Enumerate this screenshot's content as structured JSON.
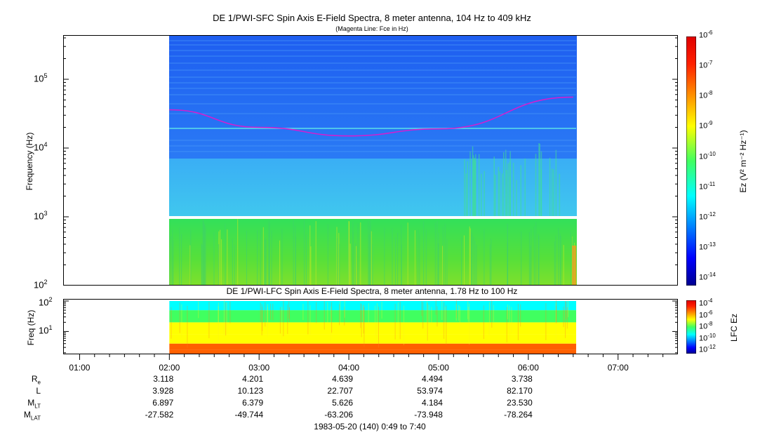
{
  "sfc_panel": {
    "title": "DE 1/PWI-SFC  Spin Axis E-Field Spectra, 8 meter antenna, 104 Hz to 409 kHz",
    "subtitle": "(Magenta Line: Fce in Hz)",
    "ylabel": "Frequency (Hz)",
    "ytick_labels": [
      {
        "base": "10",
        "exp": "5"
      },
      {
        "base": "10",
        "exp": "4"
      },
      {
        "base": "10",
        "exp": "3"
      },
      {
        "base": "10",
        "exp": "2"
      }
    ],
    "colorbar_label": "Ez (V² m⁻² Hz⁻¹)",
    "colorbar_ticks": [
      {
        "base": "10",
        "exp": "-6"
      },
      {
        "base": "10",
        "exp": "-7"
      },
      {
        "base": "10",
        "exp": "-8"
      },
      {
        "base": "10",
        "exp": "-9"
      },
      {
        "base": "10",
        "exp": "-10"
      },
      {
        "base": "10",
        "exp": "-11"
      },
      {
        "base": "10",
        "exp": "-12"
      },
      {
        "base": "10",
        "exp": "-13"
      },
      {
        "base": "10",
        "exp": "-14"
      }
    ]
  },
  "lfc_panel": {
    "title": "DE 1/PWI-LFC  Spin Axis E-Field Spectra, 8 meter antenna, 1.78 Hz to 100 Hz",
    "ylabel": "Freq (Hz)",
    "ytick_labels": [
      {
        "base": "10",
        "exp": "2"
      },
      {
        "base": "10",
        "exp": "1"
      }
    ],
    "colorbar_label": "LFC Ez",
    "colorbar_ticks": [
      {
        "base": "10",
        "exp": "-4"
      },
      {
        "base": "10",
        "exp": "-6"
      },
      {
        "base": "10",
        "exp": "-8"
      },
      {
        "base": "10",
        "exp": "-10"
      },
      {
        "base": "10",
        "exp": "-12"
      }
    ]
  },
  "time_axis": {
    "labels": [
      "01:00",
      "02:00",
      "03:00",
      "04:00",
      "05:00",
      "06:00",
      "07:00"
    ]
  },
  "orbit_table": {
    "rows": [
      {
        "label": "R",
        "sub": "e",
        "values": [
          "3.118",
          "4.201",
          "4.639",
          "4.494",
          "3.738"
        ]
      },
      {
        "label": "L",
        "sub": "",
        "values": [
          "3.928",
          "10.123",
          "22.707",
          "53.974",
          "82.170"
        ]
      },
      {
        "label": "M",
        "sub": "LT",
        "values": [
          "6.897",
          "6.379",
          "5.626",
          "4.184",
          "23.530"
        ]
      },
      {
        "label": "M",
        "sub": "LAT",
        "values": [
          "-27.582",
          "-49.744",
          "-63.206",
          "-73.948",
          "-78.264"
        ]
      }
    ]
  },
  "footer": "1983-05-20 (140) 0:49 to 7:40",
  "chart_data": [
    {
      "type": "heatmap",
      "title": "DE 1/PWI-SFC  Spin Axis E-Field Spectra, 8 meter antenna, 104 Hz to 409 kHz",
      "subtitle": "(Magenta Line: Fce in Hz)",
      "ylabel": "Frequency (Hz)",
      "yscale": "log",
      "ylim": [
        100,
        409000
      ],
      "xlim": [
        "00:49",
        "07:40"
      ],
      "data_xrange": [
        "02:00",
        "06:32"
      ],
      "colorbar": {
        "label": "Ez (V^2 m^-2 Hz^-1)",
        "scale": "log",
        "range": [
          1e-14,
          1e-06
        ]
      },
      "bands_log10": [
        {
          "fmin": 2.0,
          "fmax": 3.0,
          "level": -10.8
        },
        {
          "fmin": 3.0,
          "fmax": 3.83,
          "level": -12.3
        },
        {
          "fmin": 3.83,
          "fmax": 5.61,
          "level": -13.2
        }
      ],
      "fce_line": {
        "color": "#d020d0",
        "points": [
          {
            "t": "02:00",
            "f": 36000
          },
          {
            "t": "03:00",
            "f": 20000
          },
          {
            "t": "04:00",
            "f": 15000
          },
          {
            "t": "05:00",
            "f": 19000
          },
          {
            "t": "06:30",
            "f": 55000
          }
        ]
      },
      "grid": false
    },
    {
      "type": "heatmap",
      "title": "DE 1/PWI-LFC  Spin Axis E-Field Spectra, 8 meter antenna, 1.78 Hz to 100 Hz",
      "ylabel": "Freq (Hz)",
      "yscale": "log",
      "ylim": [
        1.78,
        100
      ],
      "data_xrange": [
        "02:00",
        "06:32"
      ],
      "colorbar": {
        "label": "LFC Ez",
        "scale": "log",
        "range": [
          1e-12,
          0.0001
        ]
      },
      "bands_log10": [
        {
          "fmin": 1.78,
          "fmax": 2.5,
          "level": -5.0
        },
        {
          "fmin": 2.5,
          "fmax": 4,
          "level": -5.8
        },
        {
          "fmin": 4,
          "fmax": 8,
          "level": -6.8
        },
        {
          "fmin": 8,
          "fmax": 20,
          "level": -7.8
        },
        {
          "fmin": 20,
          "fmax": 50,
          "level": -9.5
        },
        {
          "fmin": 50,
          "fmax": 100,
          "level": -11.0
        }
      ],
      "grid": false
    }
  ]
}
